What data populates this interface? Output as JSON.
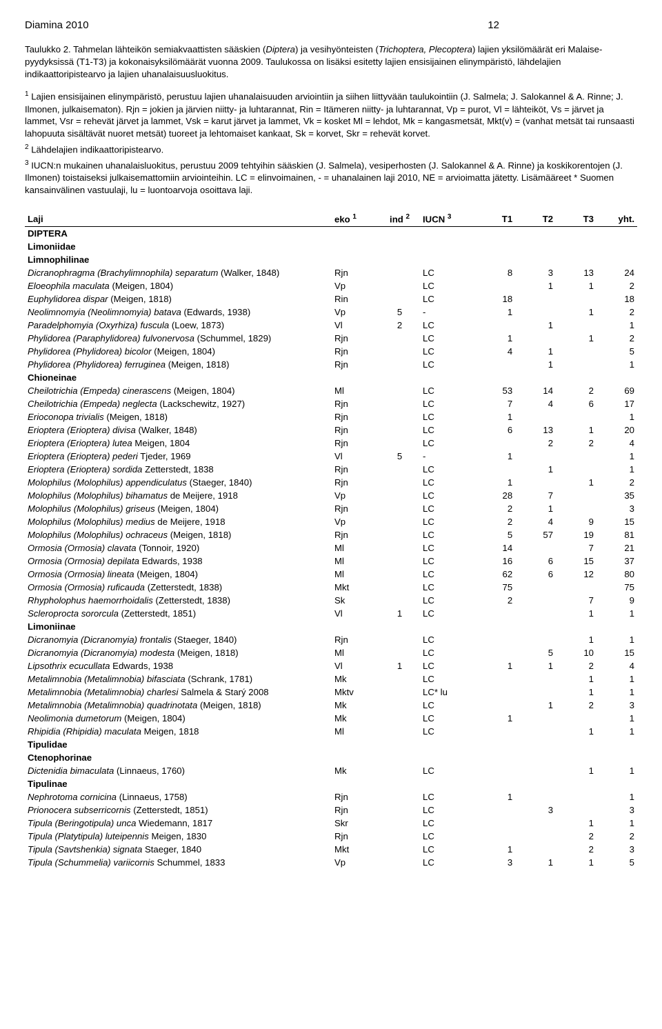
{
  "header": {
    "title": "Diamina 2010",
    "page": "12"
  },
  "intro": "Taulukko 2. Tahmelan lähteikön semiakvaattisten sääskien (<span class=\"ital\">Diptera</span>) ja vesihyönteisten (<span class=\"ital\">Trichoptera, Plecoptera</span>) lajien yksilömäärät eri Malaise-pyydyksissä (T1-T3) ja kokonaisyksilömäärät vuonna 2009. Taulukossa on lisäksi esitetty lajien ensisijainen elinympäristö, lähdelajien indikaattoripistearvo ja lajien uhanalaisuusluokitus.",
  "footnotes": [
    "<sup>1</sup> Lajien ensisijainen elinympäristö, perustuu lajien uhanalaisuuden arviointiin ja siihen liittyvään taulukointiin (J. Salmela; J. Salokannel & A. Rinne; J. Ilmonen, julkaisematon). Rjn = jokien ja järvien niitty- ja luhtarannat, Rin = Itämeren niitty- ja luhtarannat, Vp = purot, Vl = lähteiköt, Vs = järvet ja lammet, Vsr = rehevät järvet ja lammet, Vsk = karut järvet ja lammet, Vk = kosket Ml = lehdot, Mk = kangasmetsät, Mkt(v) = (vanhat metsät tai runsaasti lahopuuta sisältävät nuoret metsät) tuoreet ja lehtomaiset kankaat, Sk = korvet, Skr = rehevät korvet.",
    "<sup>2</sup> Lähdelajien indikaattoripistearvo.",
    "<sup>3</sup> IUCN:n mukainen uhanalaisluokitus, perustuu 2009 tehtyihin sääskien (J. Salmela), vesiperhosten (J. Salokannel & A. Rinne) ja koskikorentojen (J. Ilmonen) toistaiseksi julkaisemattomiin arviointeihin. LC = elinvoimainen, - = uhanalainen laji 2010, NE = arvioimatta jätetty. Lisämääreet * Suomen kansainvälinen vastuulaji, lu = luontoarvoja osoittava laji."
  ],
  "columns": {
    "species": "Laji",
    "eko": "eko <sup class=\"hdr\">1</sup>",
    "ind": "ind <sup class=\"hdr\">2</sup>",
    "iucn": "IUCN <sup class=\"hdr\">3</sup>",
    "t1": "T1",
    "t2": "T2",
    "t3": "T3",
    "yht": "yht."
  },
  "rows": [
    {
      "type": "group",
      "label": "DIPTERA"
    },
    {
      "type": "group",
      "label": "Limoniidae"
    },
    {
      "type": "group",
      "label": "Limnophilinae"
    },
    {
      "species": "Dicranophragma (Brachylimnophila) separatum",
      "auth": "(Walker, 1848)",
      "eko": "Rjn",
      "ind": "",
      "iucn": "LC",
      "t1": "8",
      "t2": "3",
      "t3": "13",
      "yht": "24"
    },
    {
      "species": "Eloeophila maculata",
      "auth": "(Meigen, 1804)",
      "eko": "Vp",
      "ind": "",
      "iucn": "LC",
      "t1": "",
      "t2": "1",
      "t3": "1",
      "yht": "2"
    },
    {
      "species": "Euphylidorea dispar",
      "auth": "(Meigen, 1818)",
      "eko": "Rin",
      "ind": "",
      "iucn": "LC",
      "t1": "18",
      "t2": "",
      "t3": "",
      "yht": "18"
    },
    {
      "species": "Neolimnomyia (Neolimnomyia) batava",
      "auth": "(Edwards, 1938)",
      "eko": "Vp",
      "ind": "5",
      "iucn": "-",
      "t1": "1",
      "t2": "",
      "t3": "1",
      "yht": "2"
    },
    {
      "species": "Paradelphomyia (Oxyrhiza) fuscula",
      "auth": "(Loew, 1873)",
      "eko": "Vl",
      "ind": "2",
      "iucn": "LC",
      "t1": "",
      "t2": "1",
      "t3": "",
      "yht": "1"
    },
    {
      "species": "Phylidorea (Paraphylidorea) fulvonervosa",
      "auth": "(Schummel, 1829)",
      "eko": "Rjn",
      "ind": "",
      "iucn": "LC",
      "t1": "1",
      "t2": "",
      "t3": "1",
      "yht": "2"
    },
    {
      "species": "Phylidorea (Phylidorea) bicolor",
      "auth": "(Meigen, 1804)",
      "eko": "Rjn",
      "ind": "",
      "iucn": "LC",
      "t1": "4",
      "t2": "1",
      "t3": "",
      "yht": "5"
    },
    {
      "species": "Phylidorea (Phylidorea) ferruginea",
      "auth": "(Meigen, 1818)",
      "eko": "Rjn",
      "ind": "",
      "iucn": "LC",
      "t1": "",
      "t2": "1",
      "t3": "",
      "yht": "1"
    },
    {
      "type": "group",
      "label": "Chioneinae"
    },
    {
      "species": "Cheilotrichia (Empeda) cinerascens",
      "auth": "(Meigen, 1804)",
      "eko": "Ml",
      "ind": "",
      "iucn": "LC",
      "t1": "53",
      "t2": "14",
      "t3": "2",
      "yht": "69"
    },
    {
      "species": "Cheilotrichia (Empeda) neglecta",
      "auth": "(Lackschewitz, 1927)",
      "eko": "Rjn",
      "ind": "",
      "iucn": "LC",
      "t1": "7",
      "t2": "4",
      "t3": "6",
      "yht": "17"
    },
    {
      "species": "Erioconopa trivialis",
      "auth": "(Meigen, 1818)",
      "eko": "Rjn",
      "ind": "",
      "iucn": "LC",
      "t1": "1",
      "t2": "",
      "t3": "",
      "yht": "1"
    },
    {
      "species": "Erioptera (Erioptera) divisa",
      "auth": "(Walker, 1848)",
      "eko": "Rjn",
      "ind": "",
      "iucn": "LC",
      "t1": "6",
      "t2": "13",
      "t3": "1",
      "yht": "20"
    },
    {
      "species": "Erioptera (Erioptera) lutea",
      "auth": "Meigen, 1804",
      "eko": "Rjn",
      "ind": "",
      "iucn": "LC",
      "t1": "",
      "t2": "2",
      "t3": "2",
      "yht": "4"
    },
    {
      "species": "Erioptera (Erioptera) pederi",
      "auth": "Tjeder, 1969",
      "eko": "Vl",
      "ind": "5",
      "iucn": "-",
      "t1": "1",
      "t2": "",
      "t3": "",
      "yht": "1"
    },
    {
      "species": "Erioptera (Erioptera) sordida",
      "auth": "Zetterstedt, 1838",
      "eko": "Rjn",
      "ind": "",
      "iucn": "LC",
      "t1": "",
      "t2": "1",
      "t3": "",
      "yht": "1"
    },
    {
      "species": "Molophilus (Molophilus) appendiculatus",
      "auth": "(Staeger, 1840)",
      "eko": "Rjn",
      "ind": "",
      "iucn": "LC",
      "t1": "1",
      "t2": "",
      "t3": "1",
      "yht": "2"
    },
    {
      "species": "Molophilus (Molophilus) bihamatus",
      "auth": "de Meijere, 1918",
      "eko": "Vp",
      "ind": "",
      "iucn": "LC",
      "t1": "28",
      "t2": "7",
      "t3": "",
      "yht": "35"
    },
    {
      "species": "Molophilus (Molophilus) griseus",
      "auth": "(Meigen, 1804)",
      "eko": "Rjn",
      "ind": "",
      "iucn": "LC",
      "t1": "2",
      "t2": "1",
      "t3": "",
      "yht": "3"
    },
    {
      "species": "Molophilus (Molophilus) medius",
      "auth": "de Meijere, 1918",
      "eko": "Vp",
      "ind": "",
      "iucn": "LC",
      "t1": "2",
      "t2": "4",
      "t3": "9",
      "yht": "15"
    },
    {
      "species": "Molophilus (Molophilus) ochraceus",
      "auth": "(Meigen, 1818)",
      "eko": "Rjn",
      "ind": "",
      "iucn": "LC",
      "t1": "5",
      "t2": "57",
      "t3": "19",
      "yht": "81"
    },
    {
      "species": "Ormosia (Ormosia) clavata",
      "auth": "(Tonnoir, 1920)",
      "eko": "Ml",
      "ind": "",
      "iucn": "LC",
      "t1": "14",
      "t2": "",
      "t3": "7",
      "yht": "21"
    },
    {
      "species": "Ormosia (Ormosia) depilata",
      "auth": "Edwards, 1938",
      "eko": "Ml",
      "ind": "",
      "iucn": "LC",
      "t1": "16",
      "t2": "6",
      "t3": "15",
      "yht": "37"
    },
    {
      "species": "Ormosia (Ormosia) lineata",
      "auth": "(Meigen, 1804)",
      "eko": "Ml",
      "ind": "",
      "iucn": "LC",
      "t1": "62",
      "t2": "6",
      "t3": "12",
      "yht": "80"
    },
    {
      "species": "Ormosia (Ormosia) ruficauda",
      "auth": "(Zetterstedt, 1838)",
      "eko": "Mkt",
      "ind": "",
      "iucn": "LC",
      "t1": "75",
      "t2": "",
      "t3": "",
      "yht": "75"
    },
    {
      "species": "Rhypholophus haemorrhoidalis",
      "auth": "(Zetterstedt, 1838)",
      "eko": "Sk",
      "ind": "",
      "iucn": "LC",
      "t1": "2",
      "t2": "",
      "t3": "7",
      "yht": "9"
    },
    {
      "species": "Scleroprocta sororcula",
      "auth": "(Zetterstedt, 1851)",
      "eko": "Vl",
      "ind": "1",
      "iucn": "LC",
      "t1": "",
      "t2": "",
      "t3": "1",
      "yht": "1"
    },
    {
      "type": "group",
      "label": "Limoniinae"
    },
    {
      "species": "Dicranomyia (Dicranomyia) frontalis",
      "auth": "(Staeger, 1840)",
      "eko": "Rjn",
      "ind": "",
      "iucn": "LC",
      "t1": "",
      "t2": "",
      "t3": "1",
      "yht": "1"
    },
    {
      "species": "Dicranomyia (Dicranomyia) modesta",
      "auth": "(Meigen, 1818)",
      "eko": "Ml",
      "ind": "",
      "iucn": "LC",
      "t1": "",
      "t2": "5",
      "t3": "10",
      "yht": "15"
    },
    {
      "species": "Lipsothrix ecucullata",
      "auth": "Edwards, 1938",
      "eko": "Vl",
      "ind": "1",
      "iucn": "LC",
      "t1": "1",
      "t2": "1",
      "t3": "2",
      "yht": "4"
    },
    {
      "species": "Metalimnobia (Metalimnobia) bifasciata",
      "auth": "(Schrank, 1781)",
      "eko": "Mk",
      "ind": "",
      "iucn": "LC",
      "t1": "",
      "t2": "",
      "t3": "1",
      "yht": "1"
    },
    {
      "species": "Metalimnobia (Metalimnobia) charlesi",
      "auth": "Salmela & Starý 2008",
      "eko": "Mktv",
      "ind": "",
      "iucn": "LC* lu",
      "t1": "",
      "t2": "",
      "t3": "1",
      "yht": "1"
    },
    {
      "species": "Metalimnobia (Metalimnobia) quadrinotata",
      "auth": "(Meigen, 1818)",
      "eko": "Mk",
      "ind": "",
      "iucn": "LC",
      "t1": "",
      "t2": "1",
      "t3": "2",
      "yht": "3"
    },
    {
      "species": "Neolimonia dumetorum",
      "auth": "(Meigen, 1804)",
      "eko": "Mk",
      "ind": "",
      "iucn": "LC",
      "t1": "1",
      "t2": "",
      "t3": "",
      "yht": "1"
    },
    {
      "species": "Rhipidia (Rhipidia) maculata",
      "auth": "Meigen, 1818",
      "eko": "Ml",
      "ind": "",
      "iucn": "LC",
      "t1": "",
      "t2": "",
      "t3": "1",
      "yht": "1"
    },
    {
      "type": "group",
      "label": "Tipulidae"
    },
    {
      "type": "group",
      "label": "Ctenophorinae"
    },
    {
      "species": "Dictenidia bimaculata",
      "auth": "(Linnaeus, 1760)",
      "eko": "Mk",
      "ind": "",
      "iucn": "LC",
      "t1": "",
      "t2": "",
      "t3": "1",
      "yht": "1"
    },
    {
      "type": "group",
      "label": "Tipulinae"
    },
    {
      "species": "Nephrotoma cornicina",
      "auth": "(Linnaeus, 1758)",
      "eko": "Rjn",
      "ind": "",
      "iucn": "LC",
      "t1": "1",
      "t2": "",
      "t3": "",
      "yht": "1"
    },
    {
      "species": "Prionocera subserricornis",
      "auth": "(Zetterstedt, 1851)",
      "eko": "Rjn",
      "ind": "",
      "iucn": "LC",
      "t1": "",
      "t2": "3",
      "t3": "",
      "yht": "3"
    },
    {
      "species": "Tipula (Beringotipula) unca",
      "auth": "Wiedemann, 1817",
      "eko": "Skr",
      "ind": "",
      "iucn": "LC",
      "t1": "",
      "t2": "",
      "t3": "1",
      "yht": "1"
    },
    {
      "species": "Tipula (Platytipula) luteipennis",
      "auth": "Meigen, 1830",
      "eko": "Rjn",
      "ind": "",
      "iucn": "LC",
      "t1": "",
      "t2": "",
      "t3": "2",
      "yht": "2"
    },
    {
      "species": "Tipula (Savtshenkia) signata",
      "auth": "Staeger, 1840",
      "eko": "Mkt",
      "ind": "",
      "iucn": "LC",
      "t1": "1",
      "t2": "",
      "t3": "2",
      "yht": "3"
    },
    {
      "species": "Tipula (Schummelia) variicornis",
      "auth": "Schummel, 1833",
      "eko": "Vp",
      "ind": "",
      "iucn": "LC",
      "t1": "3",
      "t2": "1",
      "t3": "1",
      "yht": "5"
    }
  ]
}
